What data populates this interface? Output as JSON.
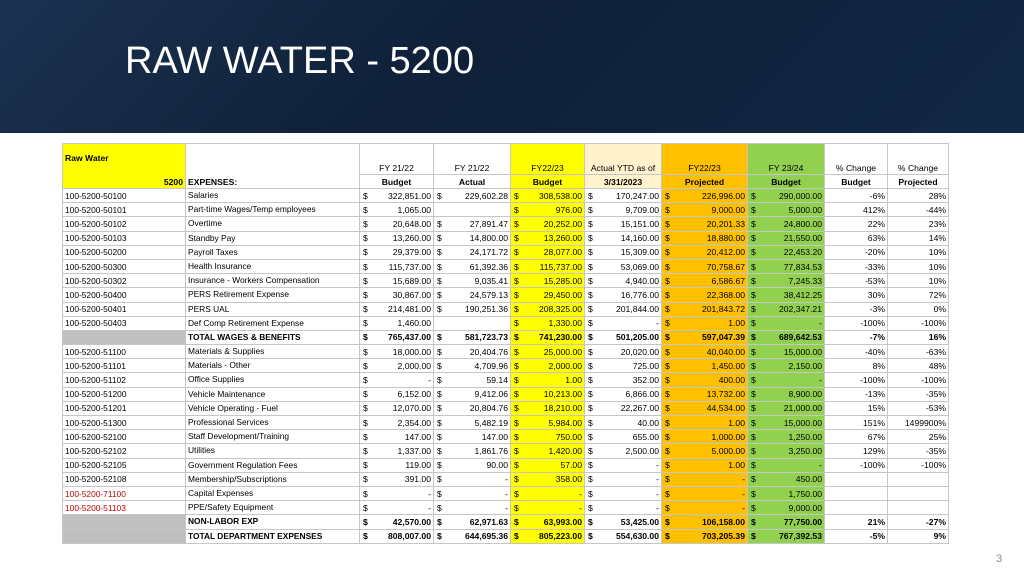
{
  "slide": {
    "title": "RAW WATER - 5200",
    "number": "3"
  },
  "sheet": {
    "dept_name": "Raw Water",
    "dept_code": "5200",
    "expenses_label": "EXPENSES:",
    "headers": [
      {
        "top": "FY 21/22",
        "bottom": "Budget"
      },
      {
        "top": "FY 21/22",
        "bottom": "Actual"
      },
      {
        "top": "FY22/23",
        "bottom": "Budget"
      },
      {
        "top": "Actual YTD as of",
        "bottom": "3/31/2023"
      },
      {
        "top": "FY22/23",
        "bottom": "Projected"
      },
      {
        "top": "FY 23/24",
        "bottom": "Budget"
      },
      {
        "top": "% Change",
        "bottom": "Budget"
      },
      {
        "top": "% Change",
        "bottom": "Projected"
      }
    ],
    "rows": [
      {
        "acct": "100-5200-50100",
        "desc": "Salaries",
        "v": [
          "322,851.00",
          "229,602.28",
          "308,538.00",
          "170,247.00",
          "226,996.00",
          "290,000.00"
        ],
        "p": [
          "-6%",
          "28%"
        ]
      },
      {
        "acct": "100-5200-50101",
        "desc": "Part-time Wages/Temp employees",
        "v": [
          "1,065.00",
          "",
          "976.00",
          "9,709.00",
          "9,000.00",
          "5,000.00"
        ],
        "p": [
          "412%",
          "-44%"
        ]
      },
      {
        "acct": "100-5200-50102",
        "desc": "Overtime",
        "v": [
          "20,648.00",
          "27,891.47",
          "20,252.00",
          "15,151.00",
          "20,201.33",
          "24,800.00"
        ],
        "p": [
          "22%",
          "23%"
        ]
      },
      {
        "acct": "100-5200-50103",
        "desc": "Standby Pay",
        "v": [
          "13,260.00",
          "14,800.00",
          "13,260.00",
          "14,160.00",
          "18,880.00",
          "21,550.00"
        ],
        "p": [
          "63%",
          "14%"
        ]
      },
      {
        "acct": "100-5200-50200",
        "desc": "Payroll Taxes",
        "v": [
          "29,379.00",
          "24,171.72",
          "28,077.00",
          "15,309.00",
          "20,412.00",
          "22,453.20"
        ],
        "p": [
          "-20%",
          "10%"
        ]
      },
      {
        "acct": "100-5200-50300",
        "desc": "Health Insurance",
        "v": [
          "115,737.00",
          "61,392.36",
          "115,737.00",
          "53,069.00",
          "70,758.67",
          "77,834.53"
        ],
        "p": [
          "-33%",
          "10%"
        ]
      },
      {
        "acct": "100-5200-50302",
        "desc": "Insurance - Workers Compensation",
        "v": [
          "15,689.00",
          "9,035.41",
          "15,285.00",
          "4,940.00",
          "6,586.67",
          "7,245.33"
        ],
        "p": [
          "-53%",
          "10%"
        ]
      },
      {
        "acct": "100-5200-50400",
        "desc": "PERS Retirement Expense",
        "v": [
          "30,867.00",
          "24,579.13",
          "29,450.00",
          "16,776.00",
          "22,368.00",
          "38,412.25"
        ],
        "p": [
          "30%",
          "72%"
        ]
      },
      {
        "acct": "100-5200-50401",
        "desc": "PERS UAL",
        "v": [
          "214,481.00",
          "190,251.36",
          "208,325.00",
          "201,844.00",
          "201,843.72",
          "202,347.21"
        ],
        "p": [
          "-3%",
          "0%"
        ]
      },
      {
        "acct": "100-5200-50403",
        "desc": "Def Comp Retirement Expense",
        "v": [
          "1,460.00",
          "",
          "1,330.00",
          "-",
          "1.00",
          "-"
        ],
        "p": [
          "-100%",
          "-100%"
        ]
      }
    ],
    "wages_total": {
      "label": "TOTAL WAGES & BENEFITS",
      "v": [
        "765,437.00",
        "581,723.73",
        "741,230.00",
        "501,205.00",
        "597,047.39",
        "689,642.53"
      ],
      "p": [
        "-7%",
        "16%"
      ]
    },
    "rows2": [
      {
        "acct": "100-5200-51100",
        "desc": "Materials & Supplies",
        "v": [
          "18,000.00",
          "20,404.76",
          "25,000.00",
          "20,020.00",
          "40,040.00",
          "15,000.00"
        ],
        "p": [
          "-40%",
          "-63%"
        ]
      },
      {
        "acct": "100-5200-51101",
        "desc": "Materials - Other",
        "v": [
          "2,000.00",
          "4,709.96",
          "2,000.00",
          "725.00",
          "1,450.00",
          "2,150.00"
        ],
        "p": [
          "8%",
          "48%"
        ]
      },
      {
        "acct": "100-5200-51102",
        "desc": "Office Supplies",
        "v": [
          "-",
          "59.14",
          "1.00",
          "352.00",
          "400.00",
          "-"
        ],
        "p": [
          "-100%",
          "-100%"
        ]
      },
      {
        "acct": "100-5200-51200",
        "desc": "Vehicle Maintenance",
        "v": [
          "6,152.00",
          "9,412.06",
          "10,213.00",
          "6,866.00",
          "13,732.00",
          "8,900.00"
        ],
        "p": [
          "-13%",
          "-35%"
        ]
      },
      {
        "acct": "100-5200-51201",
        "desc": "Vehicle Operating - Fuel",
        "v": [
          "12,070.00",
          "20,804.76",
          "18,210.00",
          "22,267.00",
          "44,534.00",
          "21,000.00"
        ],
        "p": [
          "15%",
          "-53%"
        ]
      },
      {
        "acct": "100-5200-51300",
        "desc": "Professional Services",
        "v": [
          "2,354.00",
          "5,482.19",
          "5,984.00",
          "40.00",
          "1.00",
          "15,000.00"
        ],
        "p": [
          "151%",
          "1499900%"
        ]
      },
      {
        "acct": "100-5200-52100",
        "desc": "Staff Development/Training",
        "v": [
          "147.00",
          "147.00",
          "750.00",
          "655.00",
          "1,000.00",
          "1,250.00"
        ],
        "p": [
          "67%",
          "25%"
        ]
      },
      {
        "acct": "100-5200-52102",
        "desc": "Utilities",
        "v": [
          "1,337.00",
          "1,861.76",
          "1,420.00",
          "2,500.00",
          "5,000.00",
          "3,250.00"
        ],
        "p": [
          "129%",
          "-35%"
        ]
      },
      {
        "acct": "100-5200-52105",
        "desc": "Government Regulation Fees",
        "v": [
          "119.00",
          "90.00",
          "57.00",
          "-",
          "1.00",
          "-"
        ],
        "p": [
          "-100%",
          "-100%"
        ]
      },
      {
        "acct": "100-5200-52108",
        "desc": "Membership/Subscriptions",
        "v": [
          "391.00",
          "-",
          "358.00",
          "-",
          "-",
          "450.00"
        ],
        "p": [
          "",
          ""
        ]
      },
      {
        "acct": "100-5200-71100",
        "desc": "Capital Expenses",
        "v": [
          "-",
          "-",
          "-",
          "-",
          "-",
          "1,750.00"
        ],
        "p": [
          "",
          ""
        ],
        "red": true
      },
      {
        "acct": "100-5200-51103",
        "desc": "PPE/Safety Equipment",
        "v": [
          "-",
          "-",
          "-",
          "-",
          "-",
          "9,000.00"
        ],
        "p": [
          "",
          ""
        ],
        "red": true
      }
    ],
    "nonlabor_total": {
      "label": "NON-LABOR EXP",
      "v": [
        "42,570.00",
        "62,971.63",
        "63,993.00",
        "53,425.00",
        "106,158.00",
        "77,750.00"
      ],
      "p": [
        "21%",
        "-27%"
      ]
    },
    "dept_total": {
      "label": "TOTAL DEPARTMENT EXPENSES",
      "v": [
        "808,007.00",
        "644,695.36",
        "805,223.00",
        "554,630.00",
        "703,205.39",
        "767,392.53"
      ],
      "p": [
        "-5%",
        "9%"
      ]
    },
    "currency": "$"
  },
  "colors": {
    "banner": "#142a48",
    "yellow": "#ffff00",
    "orange": "#ffc000",
    "green": "#92d050",
    "cream": "#fff2cc",
    "red_text": "#c00000"
  }
}
